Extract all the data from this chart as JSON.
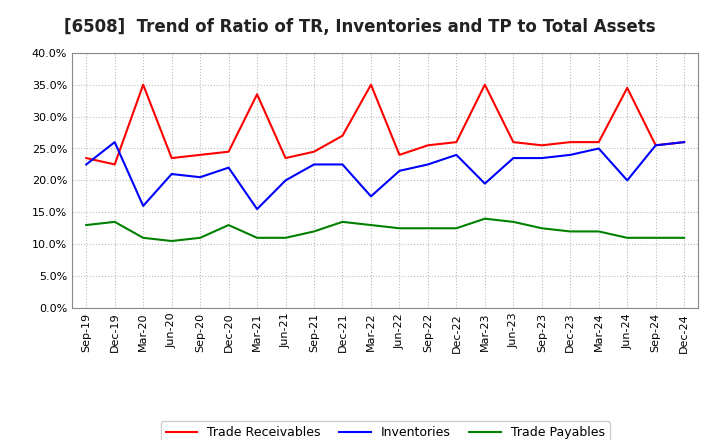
{
  "title": "[6508]  Trend of Ratio of TR, Inventories and TP to Total Assets",
  "x_labels": [
    "Sep-19",
    "Dec-19",
    "Mar-20",
    "Jun-20",
    "Sep-20",
    "Dec-20",
    "Mar-21",
    "Jun-21",
    "Sep-21",
    "Dec-21",
    "Mar-22",
    "Jun-22",
    "Sep-22",
    "Dec-22",
    "Mar-23",
    "Jun-23",
    "Sep-23",
    "Dec-23",
    "Mar-24",
    "Jun-24",
    "Sep-24",
    "Dec-24"
  ],
  "trade_receivables": [
    23.5,
    22.5,
    35.0,
    23.5,
    24.0,
    24.5,
    33.5,
    23.5,
    24.5,
    27.0,
    35.0,
    24.0,
    25.5,
    26.0,
    35.0,
    26.0,
    25.5,
    26.0,
    26.0,
    34.5,
    25.5,
    26.0
  ],
  "inventories": [
    22.5,
    26.0,
    16.0,
    21.0,
    20.5,
    22.0,
    15.5,
    20.0,
    22.5,
    22.5,
    17.5,
    21.5,
    22.5,
    24.0,
    19.5,
    23.5,
    23.5,
    24.0,
    25.0,
    20.0,
    25.5,
    26.0
  ],
  "trade_payables": [
    13.0,
    13.5,
    11.0,
    10.5,
    11.0,
    13.0,
    11.0,
    11.0,
    12.0,
    13.5,
    13.0,
    12.5,
    12.5,
    12.5,
    14.0,
    13.5,
    12.5,
    12.0,
    12.0,
    11.0,
    11.0,
    11.0
  ],
  "line_color_tr": "#FF0000",
  "line_color_inv": "#0000FF",
  "line_color_tp": "#008000",
  "ylim": [
    0,
    40
  ],
  "yticks": [
    0.0,
    5.0,
    10.0,
    15.0,
    20.0,
    25.0,
    30.0,
    35.0,
    40.0
  ],
  "background_color": "#FFFFFF",
  "plot_bg_color": "#FFFFFF",
  "grid_color": "#BBBBBB",
  "legend_tr": "Trade Receivables",
  "legend_inv": "Inventories",
  "legend_tp": "Trade Payables",
  "title_fontsize": 12,
  "tick_fontsize": 8,
  "legend_fontsize": 9
}
